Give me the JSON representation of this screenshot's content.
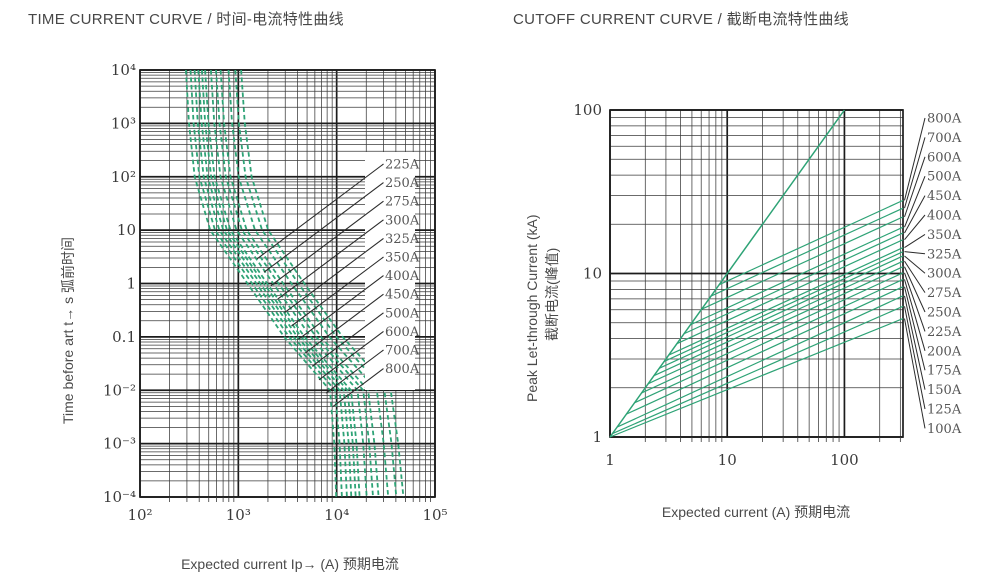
{
  "colors": {
    "curve": "#2ea376",
    "grid_major": "#1c1c1c",
    "grid_minor": "#3a3a3a",
    "leader": "#2b2b2b",
    "label_text": "#565656",
    "tick_text": "#3a3a3a",
    "title_text": "#474747",
    "background": "#ffffff"
  },
  "chart_data": [
    {
      "type": "line",
      "title": "TIME CURRENT CURVE / 时间-电流特性曲线",
      "xlabel": "Expected current Ip→ (A) 预期电流",
      "ylabel": "Time before art  t→ s  弧前时间",
      "x_scale": "log",
      "y_scale": "log",
      "xlim": [
        100,
        100000
      ],
      "ylim": [
        0.0001,
        10000
      ],
      "grid": "log-minor-both-axes",
      "x_tick_labels": [
        "10²",
        "10³",
        "10⁴",
        "10⁵"
      ],
      "y_tick_labels": [
        "10⁴",
        "10³",
        "10²",
        "10",
        "1",
        "0.1",
        "10⁻²",
        "10⁻³",
        "10⁻⁴"
      ],
      "legend_labels": [
        "225A",
        "250A",
        "275A",
        "300A",
        "325A",
        "350A",
        "400A",
        "450A",
        "500A",
        "600A",
        "700A",
        "800A"
      ],
      "line_style": "dashed",
      "times_s": [
        10000,
        1000,
        100,
        10,
        1,
        0.1,
        0.01,
        0.001,
        0.0001
      ],
      "series": [
        {
          "name": "225A",
          "current_A": [
            293,
            315,
            360,
            518,
            1238,
            2925,
            8550,
            9450,
            9900
          ]
        },
        {
          "name": "250A",
          "current_A": [
            326,
            351,
            402,
            579,
            1382,
            3280,
            9620,
            10700,
            11300
          ]
        },
        {
          "name": "275A",
          "current_A": [
            359,
            387,
            444,
            641,
            1528,
            3630,
            10700,
            11980,
            12700
          ]
        },
        {
          "name": "300A",
          "current_A": [
            392,
            424,
            487,
            704,
            1674,
            3990,
            11800,
            13270,
            14100
          ]
        },
        {
          "name": "325A",
          "current_A": [
            426,
            460,
            530,
            767,
            1821,
            4350,
            12900,
            14600,
            15600
          ]
        },
        {
          "name": "350A",
          "current_A": [
            459,
            497,
            573,
            830,
            1968,
            4710,
            14000,
            15900,
            17100
          ]
        },
        {
          "name": "400A",
          "current_A": [
            526,
            570,
            659,
            958,
            2264,
            5450,
            16300,
            18600,
            20200
          ]
        },
        {
          "name": "450A",
          "current_A": [
            593,
            643,
            745,
            1086,
            2560,
            6180,
            18600,
            21400,
            23400
          ]
        },
        {
          "name": "500A",
          "current_A": [
            660,
            717,
            833,
            1216,
            2860,
            6930,
            20900,
            24200,
            26700
          ]
        },
        {
          "name": "600A",
          "current_A": [
            795,
            865,
            1008,
            1478,
            3470,
            8440,
            25600,
            30100,
            33400
          ]
        },
        {
          "name": "700A",
          "current_A": [
            931,
            1014,
            1185,
            1743,
            4080,
            9970,
            30500,
            36100,
            40400
          ]
        },
        {
          "name": "800A",
          "current_A": [
            1067,
            1163,
            1364,
            2011,
            4690,
            11500,
            35400,
            42200,
            47700
          ]
        }
      ]
    },
    {
      "type": "line",
      "title": "CUTOFF CURRENT CURVE / 截断电流特性曲线",
      "xlabel": "Expected current (A) 预期电流",
      "ylabel_en": "Peak Let-through Current (kA)",
      "ylabel_zh": "截断电流(峰值)",
      "x_scale": "log",
      "y_scale": "log",
      "xlim": [
        1,
        316
      ],
      "ylim": [
        1,
        100
      ],
      "grid": "log-minor-both-axes",
      "x_tick_labels": [
        "1",
        "10",
        "100"
      ],
      "y_tick_labels": [
        "100",
        "10",
        "1"
      ],
      "line_style": "solid",
      "prospective_line": {
        "name": "prospective-peak-line",
        "points": [
          [
            1,
            1
          ],
          [
            100,
            100
          ]
        ]
      },
      "series": [
        {
          "name": "800A",
          "points": [
            [
              8.54,
              8.54
            ],
            [
              316,
              28.0
            ]
          ]
        },
        {
          "name": "700A",
          "points": [
            [
              7.28,
              7.28
            ],
            [
              316,
              25.1
            ]
          ]
        },
        {
          "name": "600A",
          "points": [
            [
              6.05,
              6.05
            ],
            [
              316,
              22.2
            ]
          ]
        },
        {
          "name": "500A",
          "points": [
            [
              4.86,
              4.86
            ],
            [
              316,
              19.2
            ]
          ]
        },
        {
          "name": "450A",
          "points": [
            [
              4.28,
              4.28
            ],
            [
              316,
              17.7
            ]
          ]
        },
        {
          "name": "400A",
          "points": [
            [
              3.72,
              3.72
            ],
            [
              316,
              16.1
            ]
          ]
        },
        {
          "name": "350A",
          "points": [
            [
              3.17,
              3.17
            ],
            [
              316,
              14.4
            ]
          ]
        },
        {
          "name": "325A",
          "points": [
            [
              2.9,
              2.9
            ],
            [
              316,
              13.6
            ]
          ]
        },
        {
          "name": "300A",
          "points": [
            [
              2.63,
              2.63
            ],
            [
              316,
              12.8
            ]
          ]
        },
        {
          "name": "275A",
          "points": [
            [
              2.37,
              2.37
            ],
            [
              316,
              11.9
            ]
          ]
        },
        {
          "name": "250A",
          "points": [
            [
              2.12,
              2.12
            ],
            [
              316,
              11.0
            ]
          ]
        },
        {
          "name": "225A",
          "points": [
            [
              1.86,
              1.86
            ],
            [
              316,
              10.1
            ]
          ]
        },
        {
          "name": "200A",
          "points": [
            [
              1.62,
              1.62
            ],
            [
              316,
              9.2
            ]
          ]
        },
        {
          "name": "175A",
          "points": [
            [
              1.38,
              1.38
            ],
            [
              316,
              8.3
            ]
          ]
        },
        {
          "name": "150A",
          "points": [
            [
              1.15,
              1.15
            ],
            [
              316,
              7.3
            ]
          ]
        },
        {
          "name": "125A",
          "points": [
            [
              1.05,
              1.05
            ],
            [
              316,
              6.3
            ]
          ]
        },
        {
          "name": "100A",
          "points": [
            [
              1.0,
              1.0
            ],
            [
              316,
              5.3
            ]
          ]
        }
      ]
    }
  ]
}
